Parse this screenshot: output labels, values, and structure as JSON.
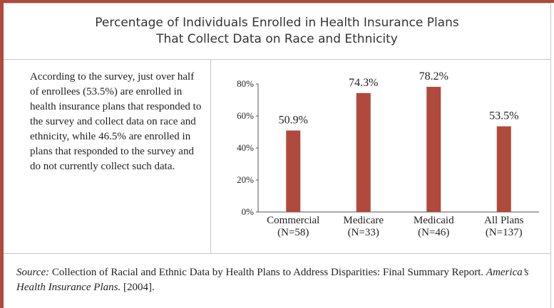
{
  "chart_data": {
    "type": "bar",
    "title": [
      "Percentage of Individuals Enrolled in Health Insurance Plans",
      "That Collect Data on Race and Ethnicity"
    ],
    "categories": [
      [
        "Commercial",
        "(N=58)"
      ],
      [
        "Medicare",
        "(N=33)"
      ],
      [
        "Medicaid",
        "(N=46)"
      ],
      [
        "All Plans",
        "(N=137)"
      ]
    ],
    "values": [
      50.9,
      74.3,
      78.2,
      53.5
    ],
    "value_labels": [
      "50.9%",
      "74.3%",
      "78.2%",
      "53.5%"
    ],
    "color": "#b04a3c",
    "ylim": [
      0,
      80
    ],
    "yticks": [
      {
        "value": 0,
        "label": "0%"
      },
      {
        "value": 20,
        "label": "20%"
      },
      {
        "value": 40,
        "label": "40%"
      },
      {
        "value": 60,
        "label": "60%"
      },
      {
        "value": 80,
        "label": "80%"
      }
    ],
    "grid": false
  },
  "description": "According to the survey, just over half of enrollees (53.5%) are enrolled in health insurance plans that responded to the survey and collect data on race and ethnicity, while 46.5% are enrolled in plans that responded to the survey and do not currently collect such data.",
  "source": {
    "label": "Source:",
    "text": "Collection of Racial and Ethnic Data by Health Plans to Address Disparities: Final Summary Report.",
    "publisher": "America’s Health Insurance Plans.",
    "year": "[2004]."
  }
}
